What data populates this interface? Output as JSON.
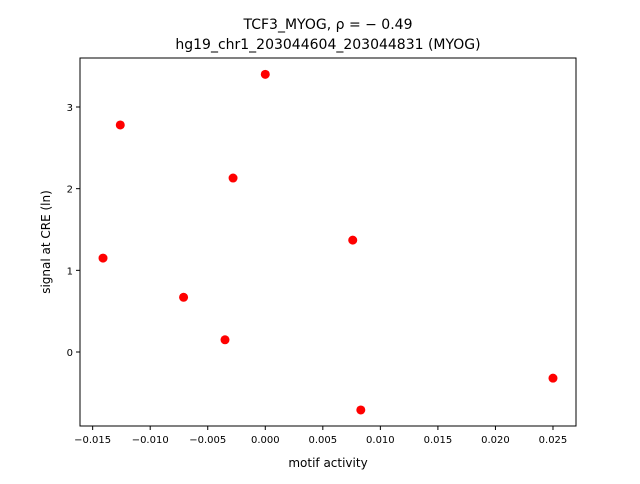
{
  "chart_data": {
    "type": "scatter",
    "title_line1": "TCF3_MYOG, ρ = − 0.49",
    "title_line2": "hg19_chr1_203044604_203044831 (MYOG)",
    "xlabel": "motif activity",
    "ylabel": "signal at CRE (ln)",
    "xlim": [
      -0.0161,
      0.027
    ],
    "ylim": [
      -0.906,
      3.6
    ],
    "xticks": [
      -0.015,
      -0.01,
      -0.005,
      0.0,
      0.005,
      0.01,
      0.015,
      0.02,
      0.025
    ],
    "xtick_labels": [
      "−0.015",
      "−0.010",
      "−0.005",
      "0.000",
      "0.005",
      "0.010",
      "0.015",
      "0.020",
      "0.025"
    ],
    "yticks": [
      0,
      1,
      2,
      3
    ],
    "ytick_labels": [
      "0",
      "1",
      "2",
      "3"
    ],
    "grid": false,
    "point_color": "#ff0000",
    "points": [
      {
        "x": 0.0,
        "y": 3.4
      },
      {
        "x": -0.0126,
        "y": 2.78
      },
      {
        "x": -0.0028,
        "y": 2.13
      },
      {
        "x": -0.0141,
        "y": 1.15
      },
      {
        "x": 0.0076,
        "y": 1.37
      },
      {
        "x": -0.0071,
        "y": 0.67
      },
      {
        "x": -0.0035,
        "y": 0.15
      },
      {
        "x": 0.025,
        "y": -0.32
      },
      {
        "x": 0.0083,
        "y": -0.71
      }
    ]
  }
}
